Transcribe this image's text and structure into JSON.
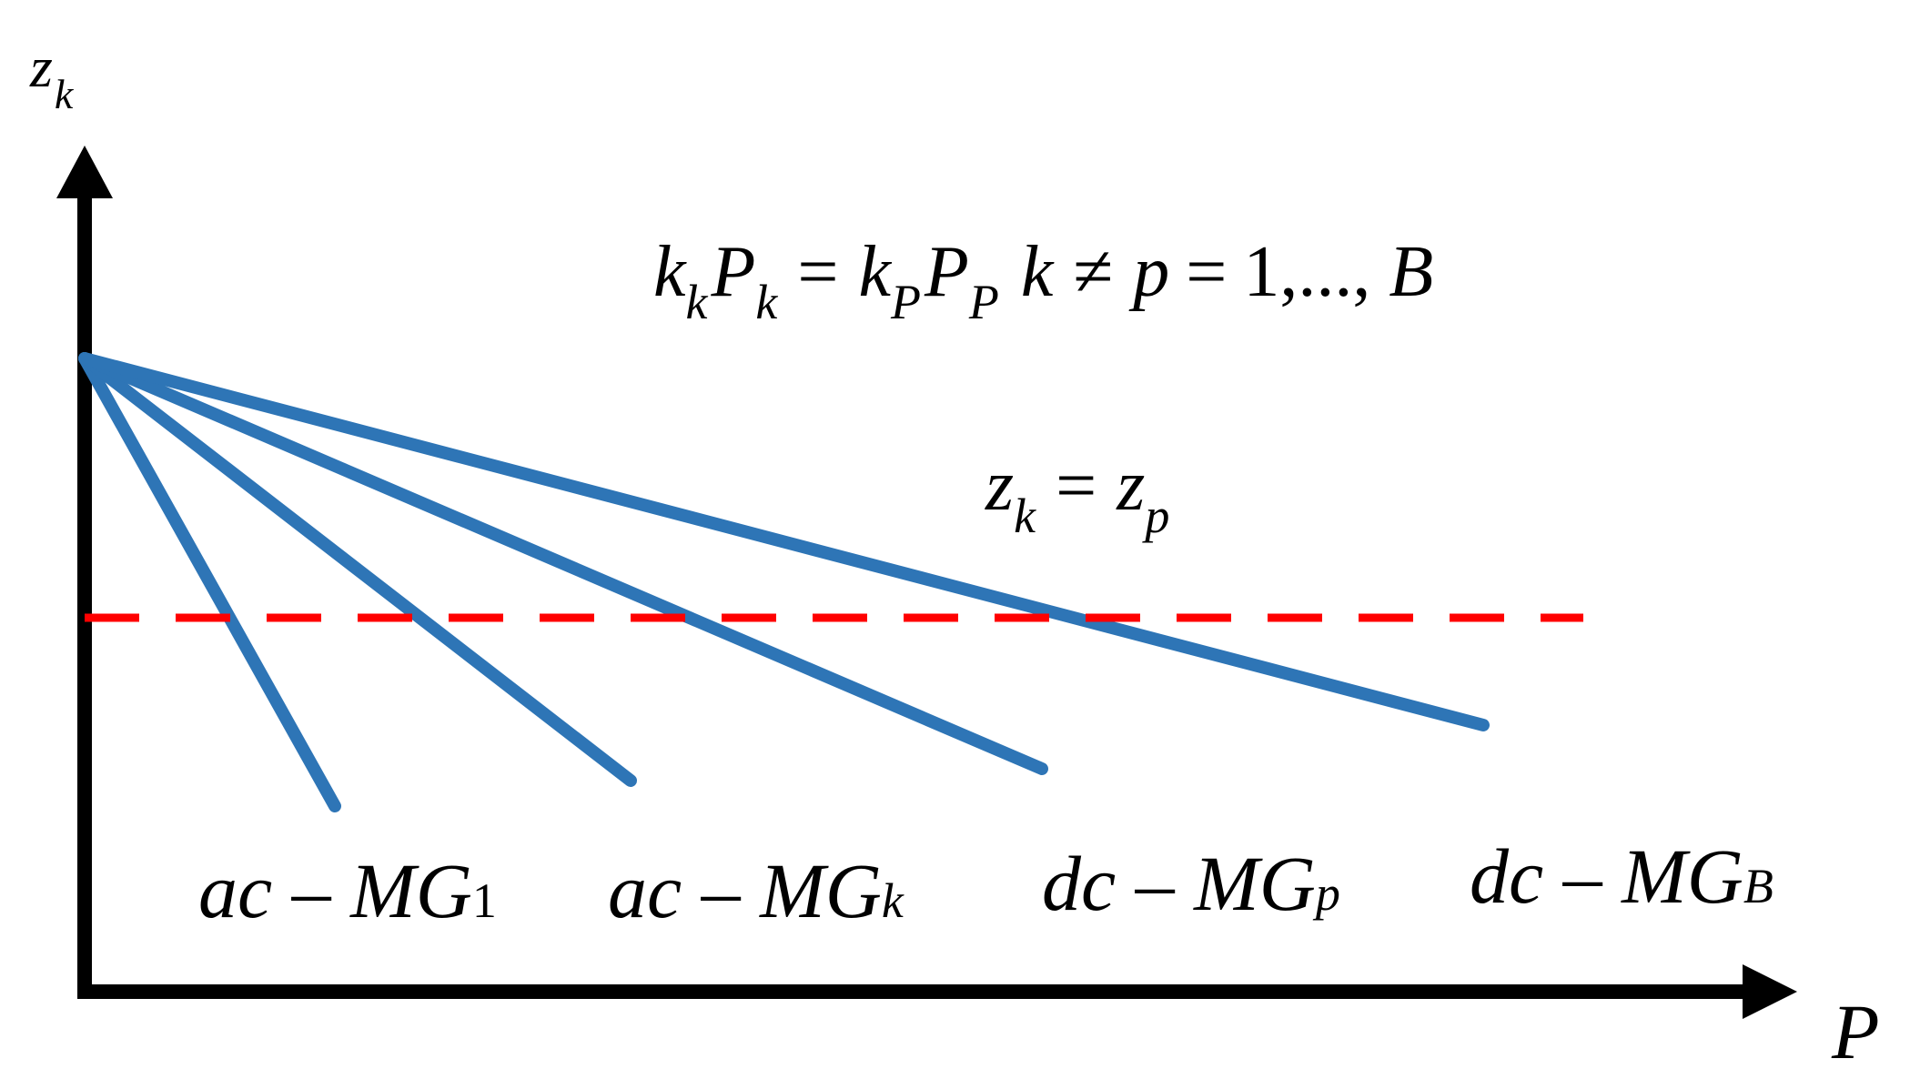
{
  "axes": {
    "y_label": {
      "base": "z",
      "sub": "k"
    },
    "x_label": "P",
    "axis_color": "#000000"
  },
  "equations": {
    "equal_power_share": {
      "parts": [
        {
          "kind": "var",
          "base": "k",
          "sub": "k"
        },
        {
          "kind": "var",
          "base": "P",
          "sub": "k"
        },
        {
          "kind": "op",
          "text": "="
        },
        {
          "kind": "var",
          "base": "k",
          "sub": "P"
        },
        {
          "kind": "var",
          "base": "P",
          "sub": "P"
        },
        {
          "kind": "var",
          "base": "k"
        },
        {
          "kind": "op",
          "text": "≠"
        },
        {
          "kind": "var",
          "base": "p"
        },
        {
          "kind": "op",
          "text": "="
        },
        {
          "kind": "num",
          "text": "1,..., "
        },
        {
          "kind": "var",
          "base": "B"
        }
      ]
    },
    "equal_index": {
      "parts": [
        {
          "kind": "var",
          "base": "z",
          "sub": "k"
        },
        {
          "kind": "op",
          "text": "="
        },
        {
          "kind": "var",
          "base": "z",
          "sub": "p"
        }
      ]
    }
  },
  "droop_lines": {
    "color": "#2E75B6",
    "items": [
      {
        "label_prefix": "ac – MG",
        "label_sub": "1"
      },
      {
        "label_prefix": "ac – MG",
        "label_sub": "k"
      },
      {
        "label_prefix": "dc – MG",
        "label_sub": "p"
      },
      {
        "label_prefix": "dc – MG",
        "label_sub": "B"
      }
    ]
  },
  "reference_line": {
    "color": "#FF0000",
    "style": "dashed"
  }
}
